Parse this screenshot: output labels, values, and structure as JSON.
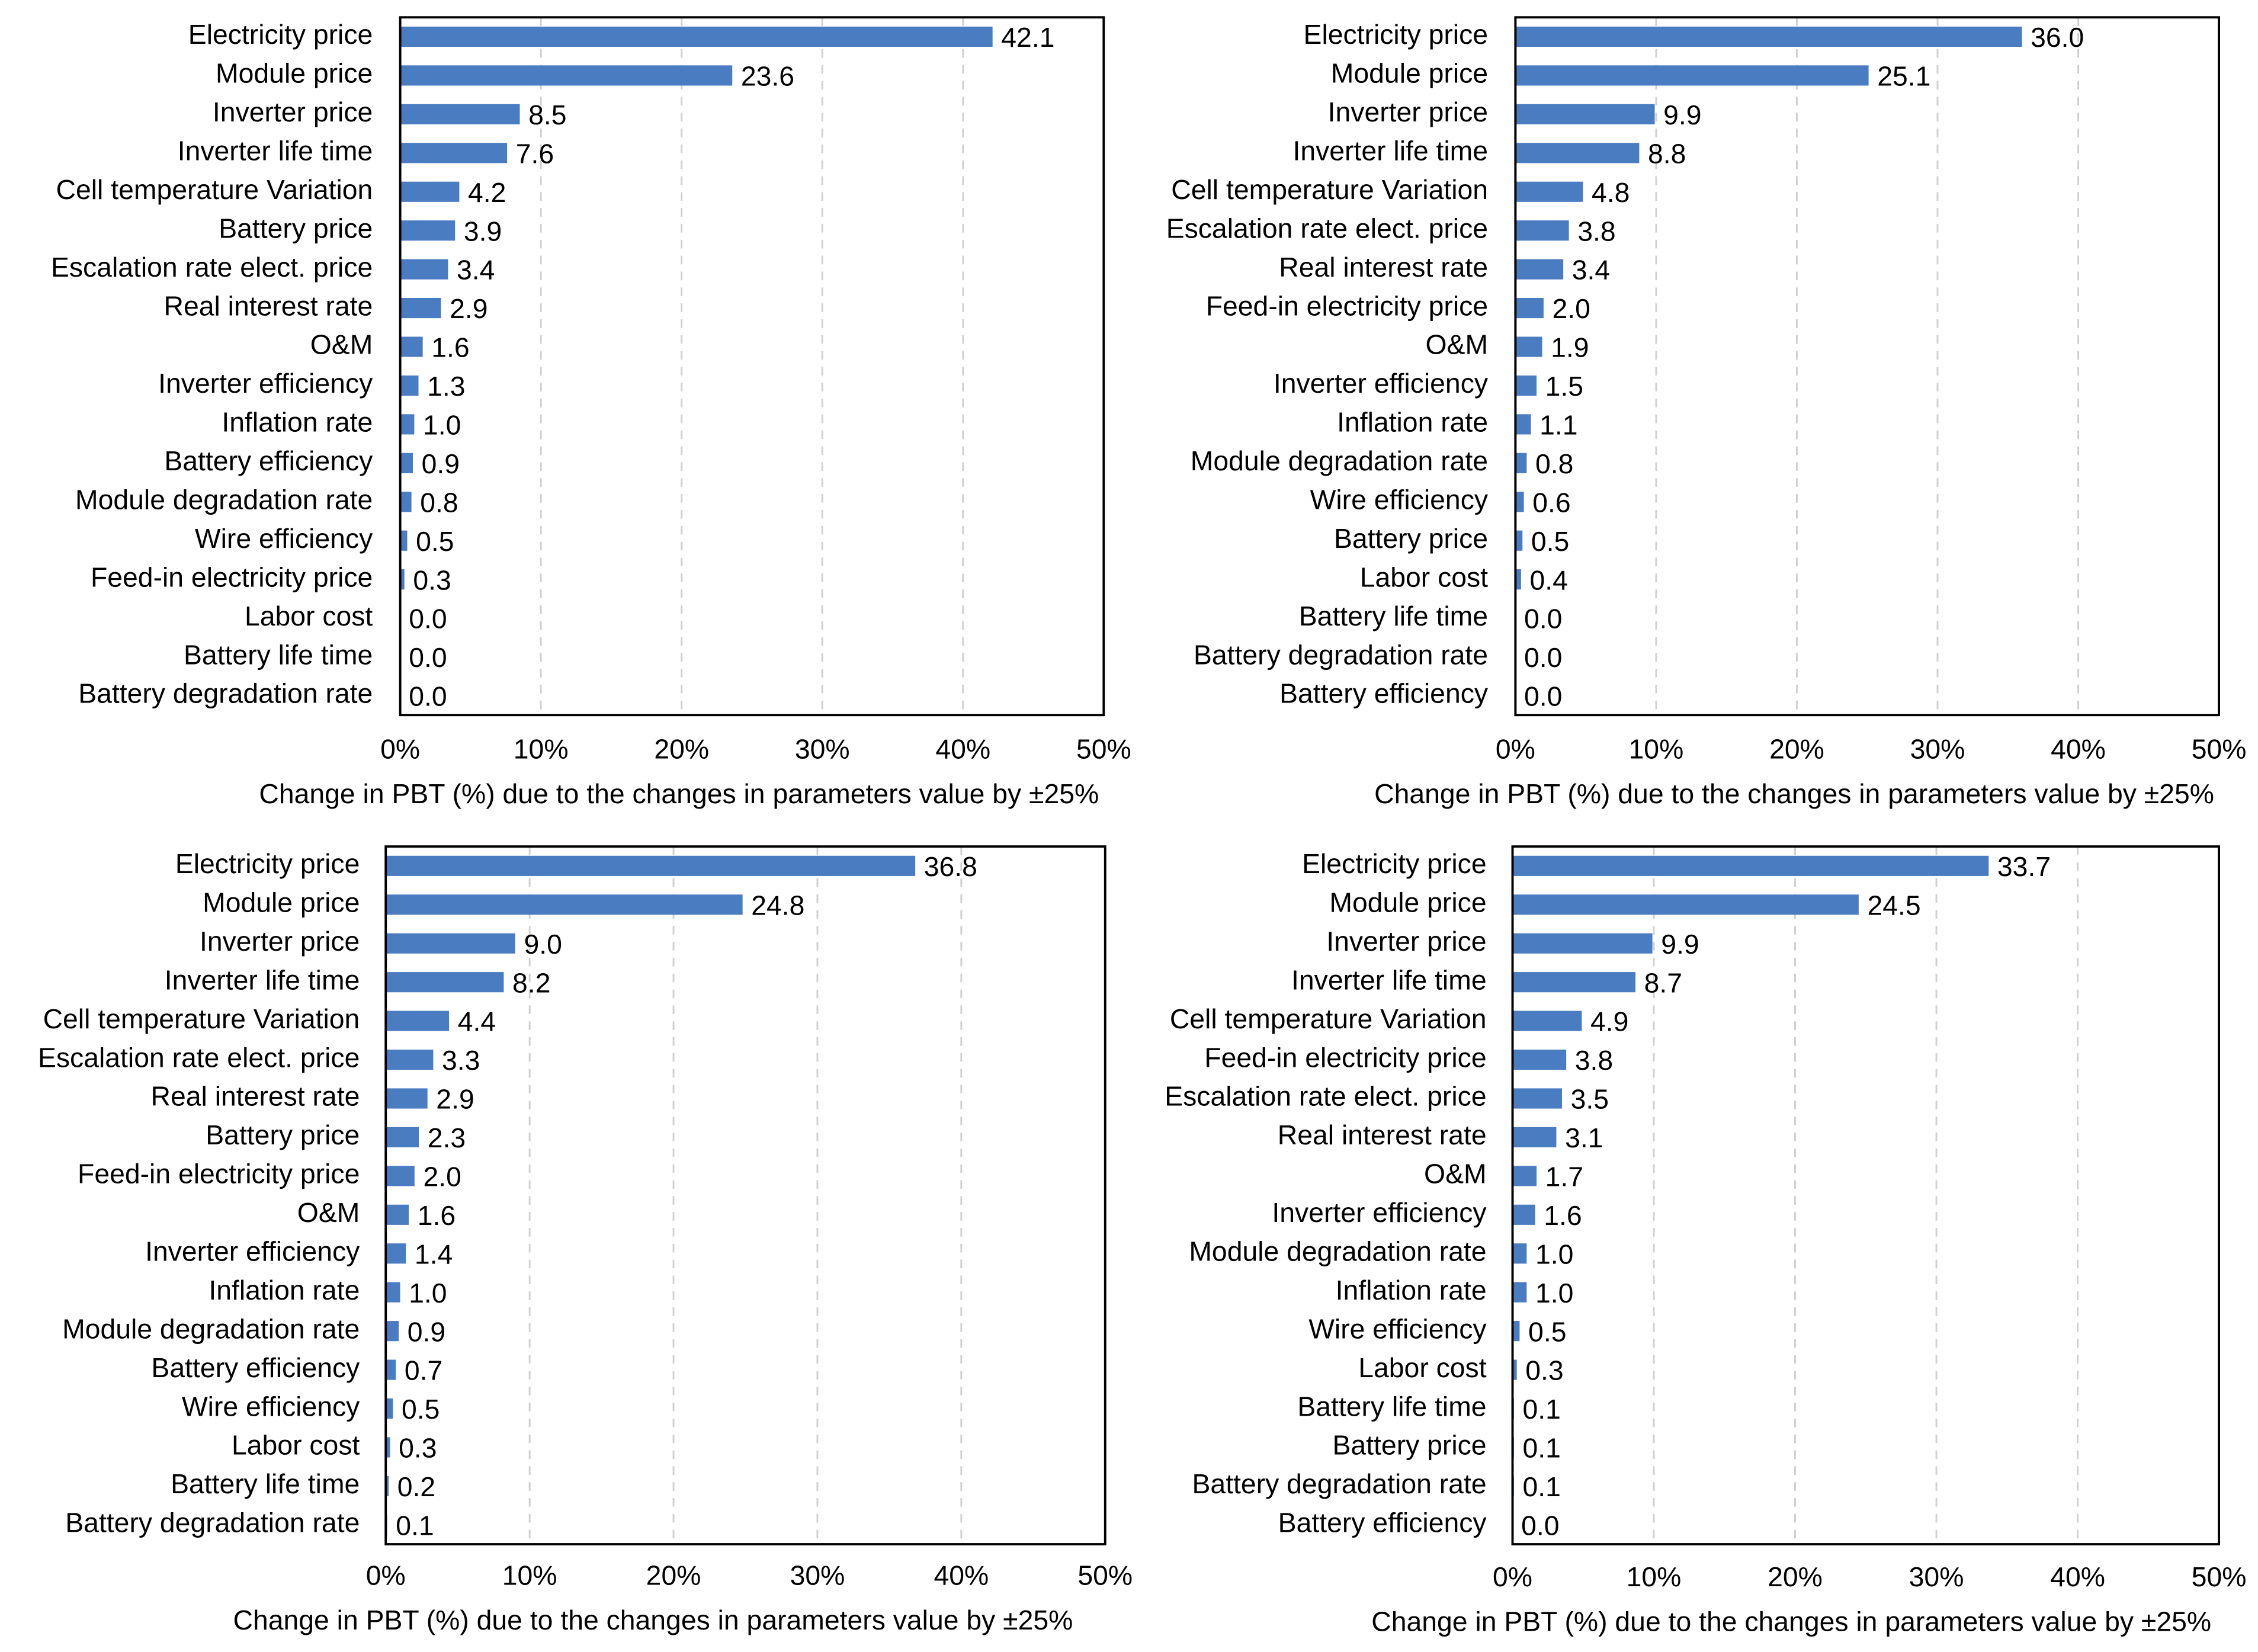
{
  "chart_data": [
    {
      "type": "bar",
      "orientation": "horizontal",
      "xlabel": "Change in PBT (%) due to the changes in parameters value by ±25%",
      "categories": [
        "Electricity price",
        "Module price",
        "Inverter price",
        "Inverter life time",
        "Cell temperature Variation",
        "Battery price",
        "Escalation rate elect. price",
        "Real interest rate",
        "O&M",
        "Inverter efficiency",
        "Inflation rate",
        "Battery efficiency",
        "Module degradation rate",
        "Wire efficiency",
        "Feed-in electricity price",
        "Labor cost",
        "Battery life time",
        "Battery degradation rate"
      ],
      "values": [
        42.1,
        23.6,
        8.5,
        7.6,
        4.2,
        3.9,
        3.4,
        2.9,
        1.6,
        1.3,
        1.0,
        0.9,
        0.8,
        0.5,
        0.3,
        0.0,
        0.0,
        0.0
      ],
      "value_labels": [
        "42.1",
        "23.6",
        "8.5",
        "7.6",
        "4.2",
        "3.9",
        "3.4",
        "2.9",
        "1.6",
        "1.3",
        "1.0",
        "0.9",
        "0.8",
        "0.5",
        "0.3",
        "0.0",
        "0.0",
        "0.0"
      ],
      "color": "#4a7cc1",
      "xlim": [
        0,
        50
      ],
      "xticks": [
        {
          "value": 0,
          "label": "0%"
        },
        {
          "value": 10,
          "label": "10%"
        },
        {
          "value": 20,
          "label": "20%"
        },
        {
          "value": 30,
          "label": "30%"
        },
        {
          "value": 40,
          "label": "40%"
        },
        {
          "value": 50,
          "label": "50%"
        }
      ],
      "grid": true
    },
    {
      "type": "bar",
      "orientation": "horizontal",
      "xlabel": "Change in PBT (%) due to the changes in parameters value by ±25%",
      "categories": [
        "Electricity price",
        "Module price",
        "Inverter price",
        "Inverter life time",
        "Cell temperature Variation",
        "Escalation rate elect. price",
        "Real interest rate",
        "Feed-in electricity price",
        "O&M",
        "Inverter efficiency",
        "Inflation rate",
        "Module degradation rate",
        "Wire efficiency",
        "Battery price",
        "Labor cost",
        "Battery life time",
        "Battery degradation rate",
        "Battery efficiency"
      ],
      "values": [
        36.0,
        25.1,
        9.9,
        8.8,
        4.8,
        3.8,
        3.4,
        2.0,
        1.9,
        1.5,
        1.1,
        0.8,
        0.6,
        0.5,
        0.4,
        0.0,
        0.0,
        0.0
      ],
      "value_labels": [
        "36.0",
        "25.1",
        "9.9",
        "8.8",
        "4.8",
        "3.8",
        "3.4",
        "2.0",
        "1.9",
        "1.5",
        "1.1",
        "0.8",
        "0.6",
        "0.5",
        "0.4",
        "0.0",
        "0.0",
        "0.0"
      ],
      "color": "#4a7cc1",
      "xlim": [
        0,
        50
      ],
      "xticks": [
        {
          "value": 0,
          "label": "0%"
        },
        {
          "value": 10,
          "label": "10%"
        },
        {
          "value": 20,
          "label": "20%"
        },
        {
          "value": 30,
          "label": "30%"
        },
        {
          "value": 40,
          "label": "40%"
        },
        {
          "value": 50,
          "label": "50%"
        }
      ],
      "grid": true
    },
    {
      "type": "bar",
      "orientation": "horizontal",
      "xlabel": "Change in PBT (%) due to the changes in parameters value by ±25%",
      "categories": [
        "Electricity price",
        "Module price",
        "Inverter price",
        "Inverter life time",
        "Cell temperature Variation",
        "Escalation rate elect. price",
        "Real interest rate",
        "Battery price",
        "Feed-in electricity price",
        "O&M",
        "Inverter efficiency",
        "Inflation rate",
        "Module degradation rate",
        "Battery efficiency",
        "Wire efficiency",
        "Labor cost",
        "Battery life time",
        "Battery degradation rate"
      ],
      "values": [
        36.8,
        24.8,
        9.0,
        8.2,
        4.4,
        3.3,
        2.9,
        2.3,
        2.0,
        1.6,
        1.4,
        1.0,
        0.9,
        0.7,
        0.5,
        0.3,
        0.2,
        0.1
      ],
      "value_labels": [
        "36.8",
        "24.8",
        "9.0",
        "8.2",
        "4.4",
        "3.3",
        "2.9",
        "2.3",
        "2.0",
        "1.6",
        "1.4",
        "1.0",
        "0.9",
        "0.7",
        "0.5",
        "0.3",
        "0.2",
        "0.1"
      ],
      "color": "#4a7cc1",
      "xlim": [
        0,
        50
      ],
      "xticks": [
        {
          "value": 0,
          "label": "0%"
        },
        {
          "value": 10,
          "label": "10%"
        },
        {
          "value": 20,
          "label": "20%"
        },
        {
          "value": 30,
          "label": "30%"
        },
        {
          "value": 40,
          "label": "40%"
        },
        {
          "value": 50,
          "label": "50%"
        }
      ],
      "grid": true
    },
    {
      "type": "bar",
      "orientation": "horizontal",
      "xlabel": "Change in PBT (%) due to the changes in parameters value by ±25%",
      "categories": [
        "Electricity price",
        "Module price",
        "Inverter price",
        "Inverter life time",
        "Cell temperature Variation",
        "Feed-in electricity price",
        "Escalation rate elect. price",
        "Real interest rate",
        "O&M",
        "Inverter efficiency",
        "Module degradation rate",
        "Inflation rate",
        "Wire efficiency",
        "Labor cost",
        "Battery life time",
        "Battery price",
        "Battery degradation rate",
        "Battery efficiency"
      ],
      "values": [
        33.7,
        24.5,
        9.9,
        8.7,
        4.9,
        3.8,
        3.5,
        3.1,
        1.7,
        1.6,
        1.0,
        1.0,
        0.5,
        0.3,
        0.1,
        0.1,
        0.1,
        0.0
      ],
      "value_labels": [
        "33.7",
        "24.5",
        "9.9",
        "8.7",
        "4.9",
        "3.8",
        "3.5",
        "3.1",
        "1.7",
        "1.6",
        "1.0",
        "1.0",
        "0.5",
        "0.3",
        "0.1",
        "0.1",
        "0.1",
        "0.0"
      ],
      "color": "#4a7cc1",
      "xlim": [
        0,
        50
      ],
      "xticks": [
        {
          "value": 0,
          "label": "0%"
        },
        {
          "value": 10,
          "label": "10%"
        },
        {
          "value": 20,
          "label": "20%"
        },
        {
          "value": 30,
          "label": "30%"
        },
        {
          "value": 40,
          "label": "40%"
        },
        {
          "value": 50,
          "label": "50%"
        }
      ],
      "grid": true
    }
  ]
}
